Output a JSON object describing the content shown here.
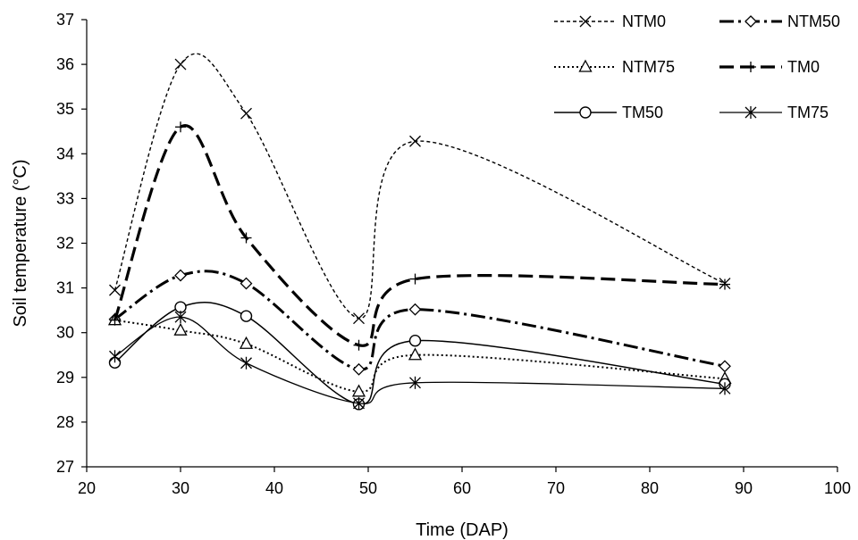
{
  "chart_data": {
    "type": "line",
    "xlabel": "Time (DAP)",
    "ylabel": "Soil temperature (°C)",
    "xlim": [
      20,
      100
    ],
    "ylim": [
      27,
      37
    ],
    "xticks": [
      "20",
      "30",
      "40",
      "50",
      "60",
      "70",
      "80",
      "90",
      "100"
    ],
    "yticks": [
      "27",
      "28",
      "29",
      "30",
      "31",
      "32",
      "33",
      "34",
      "35",
      "36",
      "37"
    ],
    "grid": false,
    "legend_position": "top-right",
    "x": [
      23,
      30,
      37,
      49,
      55,
      88
    ],
    "series": [
      {
        "name": "NTM0",
        "values": [
          30.95,
          36.0,
          34.9,
          30.32,
          34.28,
          31.1
        ],
        "marker": "x",
        "line": "dashed-thin"
      },
      {
        "name": "NTM50",
        "values": [
          30.3,
          31.28,
          31.1,
          29.18,
          30.52,
          29.25
        ],
        "marker": "diamond",
        "line": "dashdot-thick"
      },
      {
        "name": "NTM75",
        "values": [
          30.28,
          30.05,
          29.75,
          28.68,
          29.5,
          28.97
        ],
        "marker": "triangle",
        "line": "dotted"
      },
      {
        "name": "TM0",
        "values": [
          30.28,
          34.6,
          32.12,
          29.72,
          31.2,
          31.08
        ],
        "marker": "plus",
        "line": "dashed-thick"
      },
      {
        "name": "TM50",
        "values": [
          29.33,
          30.57,
          30.37,
          28.4,
          29.82,
          28.85
        ],
        "marker": "circle",
        "line": "solid"
      },
      {
        "name": "TM75",
        "values": [
          29.47,
          30.35,
          29.32,
          28.42,
          28.88,
          28.75
        ],
        "marker": "star",
        "line": "solid-thin"
      }
    ]
  }
}
